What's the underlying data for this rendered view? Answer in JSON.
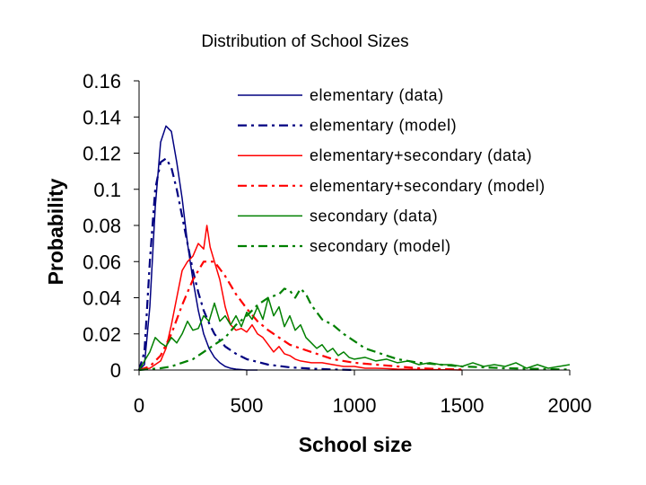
{
  "chart_data": {
    "type": "line",
    "title": "Distribution of School Sizes",
    "xlabel": "School size",
    "ylabel": "Probability",
    "xlim": [
      0,
      2000
    ],
    "ylim": [
      0,
      0.16
    ],
    "xticks": [
      0,
      500,
      1000,
      1500,
      2000
    ],
    "xtick_labels": [
      "0",
      "500",
      "1000",
      "1500",
      "2000"
    ],
    "yticks": [
      0,
      0.02,
      0.04,
      0.06,
      0.08,
      0.1,
      0.12,
      0.14,
      0.16
    ],
    "ytick_labels": [
      "0",
      "0.02",
      "0.04",
      "0.06",
      "0.08",
      "0.1",
      "0.12",
      "0.14",
      "0.16"
    ],
    "grid": false,
    "legend_position": "top-right",
    "series": [
      {
        "name": "elementary (data)",
        "color": "#000080",
        "style": "solid",
        "points": [
          [
            0,
            0
          ],
          [
            25,
            0.003
          ],
          [
            50,
            0.035
          ],
          [
            75,
            0.09
          ],
          [
            100,
            0.126
          ],
          [
            125,
            0.135
          ],
          [
            150,
            0.132
          ],
          [
            175,
            0.115
          ],
          [
            200,
            0.095
          ],
          [
            225,
            0.07
          ],
          [
            250,
            0.05
          ],
          [
            275,
            0.033
          ],
          [
            300,
            0.02
          ],
          [
            325,
            0.012
          ],
          [
            350,
            0.007
          ],
          [
            375,
            0.004
          ],
          [
            400,
            0.002
          ],
          [
            425,
            0.001
          ],
          [
            450,
            0.0005
          ],
          [
            500,
            0
          ],
          [
            550,
            0
          ]
        ]
      },
      {
        "name": "elementary (model)",
        "color": "#000080",
        "style": "dashdot",
        "points": [
          [
            0,
            0
          ],
          [
            25,
            0.01
          ],
          [
            50,
            0.06
          ],
          [
            75,
            0.1
          ],
          [
            100,
            0.115
          ],
          [
            125,
            0.117
          ],
          [
            150,
            0.112
          ],
          [
            175,
            0.1
          ],
          [
            200,
            0.085
          ],
          [
            225,
            0.07
          ],
          [
            250,
            0.055
          ],
          [
            275,
            0.043
          ],
          [
            300,
            0.033
          ],
          [
            325,
            0.026
          ],
          [
            350,
            0.02
          ],
          [
            400,
            0.013
          ],
          [
            450,
            0.009
          ],
          [
            500,
            0.006
          ],
          [
            600,
            0.003
          ],
          [
            700,
            0.0015
          ],
          [
            800,
            0.0008
          ],
          [
            900,
            0.0003
          ],
          [
            1000,
            0
          ]
        ]
      },
      {
        "name": "elementary+secondary (data)",
        "color": "#ff0000",
        "style": "solid",
        "points": [
          [
            0,
            0
          ],
          [
            50,
            0.001
          ],
          [
            100,
            0.005
          ],
          [
            125,
            0.012
          ],
          [
            150,
            0.025
          ],
          [
            175,
            0.04
          ],
          [
            200,
            0.055
          ],
          [
            225,
            0.06
          ],
          [
            250,
            0.063
          ],
          [
            275,
            0.07
          ],
          [
            300,
            0.067
          ],
          [
            315,
            0.08
          ],
          [
            330,
            0.068
          ],
          [
            350,
            0.06
          ],
          [
            375,
            0.05
          ],
          [
            400,
            0.035
          ],
          [
            425,
            0.025
          ],
          [
            450,
            0.022
          ],
          [
            475,
            0.023
          ],
          [
            500,
            0.021
          ],
          [
            525,
            0.025
          ],
          [
            550,
            0.02
          ],
          [
            575,
            0.018
          ],
          [
            600,
            0.014
          ],
          [
            625,
            0.01
          ],
          [
            650,
            0.013
          ],
          [
            675,
            0.009
          ],
          [
            700,
            0.008
          ],
          [
            725,
            0.006
          ],
          [
            750,
            0.005
          ],
          [
            800,
            0.004
          ],
          [
            850,
            0.004
          ],
          [
            900,
            0.003
          ],
          [
            950,
            0.002
          ],
          [
            1000,
            0.002
          ],
          [
            1050,
            0.001
          ],
          [
            1100,
            0.001
          ],
          [
            1150,
            0.0008
          ],
          [
            1200,
            0.0005
          ],
          [
            1300,
            0.0003
          ],
          [
            1500,
            0
          ]
        ]
      },
      {
        "name": "elementary+secondary (model)",
        "color": "#ff0000",
        "style": "dashdot",
        "points": [
          [
            0,
            0
          ],
          [
            50,
            0.002
          ],
          [
            100,
            0.008
          ],
          [
            150,
            0.02
          ],
          [
            200,
            0.036
          ],
          [
            250,
            0.05
          ],
          [
            300,
            0.06
          ],
          [
            350,
            0.06
          ],
          [
            400,
            0.052
          ],
          [
            450,
            0.042
          ],
          [
            500,
            0.034
          ],
          [
            550,
            0.027
          ],
          [
            600,
            0.022
          ],
          [
            650,
            0.018
          ],
          [
            700,
            0.014
          ],
          [
            750,
            0.012
          ],
          [
            800,
            0.01
          ],
          [
            850,
            0.008
          ],
          [
            900,
            0.006
          ],
          [
            950,
            0.005
          ],
          [
            1000,
            0.004
          ],
          [
            1100,
            0.003
          ],
          [
            1200,
            0.002
          ],
          [
            1300,
            0.001
          ],
          [
            1400,
            0.0006
          ],
          [
            1500,
            0.0003
          ]
        ]
      },
      {
        "name": "secondary (data)",
        "color": "#008000",
        "style": "solid",
        "points": [
          [
            0,
            0
          ],
          [
            25,
            0.005
          ],
          [
            50,
            0.01
          ],
          [
            75,
            0.018
          ],
          [
            100,
            0.015
          ],
          [
            125,
            0.013
          ],
          [
            150,
            0.018
          ],
          [
            175,
            0.015
          ],
          [
            200,
            0.02
          ],
          [
            225,
            0.027
          ],
          [
            250,
            0.022
          ],
          [
            275,
            0.023
          ],
          [
            300,
            0.03
          ],
          [
            325,
            0.027
          ],
          [
            350,
            0.037
          ],
          [
            375,
            0.027
          ],
          [
            400,
            0.03
          ],
          [
            425,
            0.025
          ],
          [
            450,
            0.03
          ],
          [
            475,
            0.024
          ],
          [
            500,
            0.032
          ],
          [
            525,
            0.028
          ],
          [
            550,
            0.035
          ],
          [
            575,
            0.028
          ],
          [
            600,
            0.04
          ],
          [
            625,
            0.03
          ],
          [
            650,
            0.035
          ],
          [
            675,
            0.024
          ],
          [
            700,
            0.03
          ],
          [
            725,
            0.022
          ],
          [
            750,
            0.025
          ],
          [
            775,
            0.018
          ],
          [
            800,
            0.015
          ],
          [
            825,
            0.012
          ],
          [
            850,
            0.014
          ],
          [
            875,
            0.01
          ],
          [
            900,
            0.012
          ],
          [
            925,
            0.008
          ],
          [
            950,
            0.01
          ],
          [
            975,
            0.007
          ],
          [
            1000,
            0.006
          ],
          [
            1050,
            0.007
          ],
          [
            1100,
            0.005
          ],
          [
            1150,
            0.006
          ],
          [
            1200,
            0.004
          ],
          [
            1250,
            0.005
          ],
          [
            1300,
            0.003
          ],
          [
            1350,
            0.004
          ],
          [
            1400,
            0.003
          ],
          [
            1450,
            0.003
          ],
          [
            1500,
            0.002
          ],
          [
            1550,
            0.004
          ],
          [
            1600,
            0.002
          ],
          [
            1650,
            0.003
          ],
          [
            1700,
            0.002
          ],
          [
            1750,
            0.004
          ],
          [
            1800,
            0.001
          ],
          [
            1850,
            0.003
          ],
          [
            1900,
            0.001
          ],
          [
            1950,
            0.002
          ],
          [
            2000,
            0.003
          ]
        ]
      },
      {
        "name": "secondary (model)",
        "color": "#008000",
        "style": "dashdot",
        "points": [
          [
            0,
            0
          ],
          [
            100,
            0.001
          ],
          [
            150,
            0.002
          ],
          [
            200,
            0.004
          ],
          [
            250,
            0.006
          ],
          [
            300,
            0.01
          ],
          [
            350,
            0.014
          ],
          [
            400,
            0.018
          ],
          [
            450,
            0.025
          ],
          [
            500,
            0.03
          ],
          [
            550,
            0.036
          ],
          [
            600,
            0.04
          ],
          [
            650,
            0.042
          ],
          [
            675,
            0.045
          ],
          [
            700,
            0.044
          ],
          [
            725,
            0.04
          ],
          [
            750,
            0.045
          ],
          [
            775,
            0.042
          ],
          [
            800,
            0.036
          ],
          [
            850,
            0.028
          ],
          [
            900,
            0.025
          ],
          [
            950,
            0.02
          ],
          [
            1000,
            0.016
          ],
          [
            1050,
            0.012
          ],
          [
            1100,
            0.01
          ],
          [
            1150,
            0.008
          ],
          [
            1200,
            0.006
          ],
          [
            1300,
            0.004
          ],
          [
            1400,
            0.003
          ],
          [
            1500,
            0.002
          ],
          [
            1600,
            0.0015
          ],
          [
            1700,
            0.001
          ],
          [
            1800,
            0.0008
          ],
          [
            1900,
            0.0005
          ],
          [
            2000,
            0.0003
          ]
        ]
      }
    ]
  }
}
